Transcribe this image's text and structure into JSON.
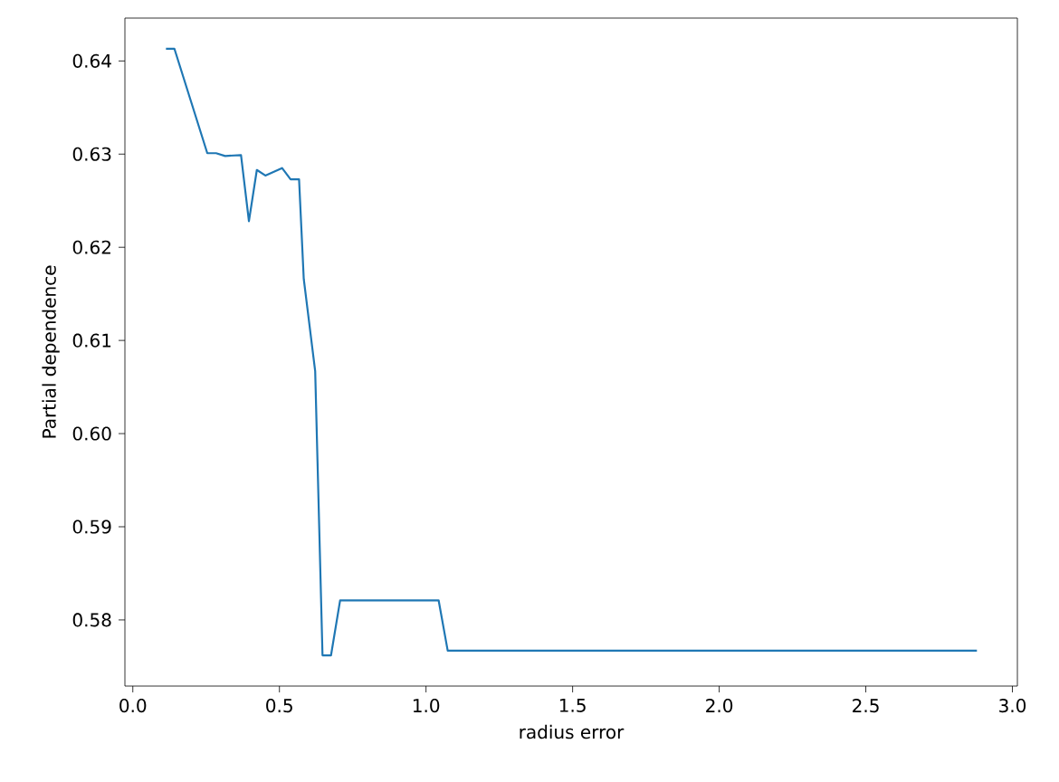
{
  "chart_data": {
    "type": "line",
    "xlabel": "radius error",
    "ylabel": "Partial dependence",
    "x": [
      0.113,
      0.142,
      0.254,
      0.284,
      0.315,
      0.369,
      0.396,
      0.423,
      0.452,
      0.509,
      0.538,
      0.567,
      0.583,
      0.622,
      0.647,
      0.676,
      0.707,
      1.043,
      1.074,
      2.879
    ],
    "series": [
      {
        "color": "#1f77b4",
        "values": [
          0.6413,
          0.6413,
          0.6301,
          0.6301,
          0.6298,
          0.6299,
          0.6228,
          0.6283,
          0.6277,
          0.6285,
          0.6273,
          0.6273,
          0.6166,
          0.6067,
          0.5762,
          0.5762,
          0.5821,
          0.5821,
          0.5767,
          0.5767
        ]
      }
    ],
    "xlim": [
      -0.027,
      3.017
    ],
    "ylim": [
      0.5729,
      0.6446
    ],
    "xticks": [
      {
        "value": 0,
        "label": "0.0"
      },
      0.5,
      {
        "value": 1,
        "label": "1.0"
      },
      1.5,
      {
        "value": 2,
        "label": "2.0"
      },
      2.5,
      {
        "value": 3,
        "label": "3.0"
      }
    ],
    "yticks": [
      0.58,
      0.59,
      {
        "value": 0.6,
        "label": "0.60"
      },
      0.61,
      0.62,
      0.63,
      0.64
    ],
    "grid": false,
    "marker": "none",
    "line_style": "solid"
  }
}
